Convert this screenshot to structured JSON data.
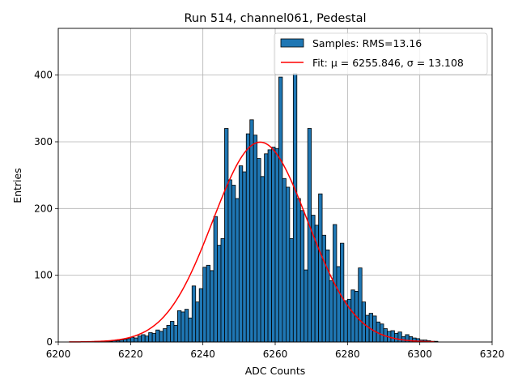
{
  "chart_data": {
    "type": "bar",
    "title": "Run 514, channel061, Pedestal",
    "xlabel": "ADC Counts",
    "ylabel": "Entries",
    "xlim": [
      6200,
      6320
    ],
    "ylim": [
      0,
      470
    ],
    "xticks": [
      6200,
      6220,
      6240,
      6260,
      6280,
      6300,
      6320
    ],
    "yticks": [
      0,
      100,
      200,
      300,
      400
    ],
    "grid": true,
    "legend_position": "top-right",
    "series": [
      {
        "name": "Samples: RMS=13.16",
        "type": "histogram",
        "color": "#1f77b4",
        "edgecolor": "#000000",
        "bin_start": 6203,
        "bin_width": 1,
        "values": [
          0,
          0,
          0,
          0,
          0,
          0,
          0,
          1,
          1,
          1,
          1,
          1,
          2,
          2,
          3,
          4,
          5,
          7,
          6,
          9,
          11,
          9,
          14,
          13,
          18,
          16,
          20,
          25,
          31,
          25,
          47,
          45,
          49,
          36,
          84,
          60,
          80,
          112,
          115,
          107,
          188,
          145,
          155,
          320,
          243,
          235,
          215,
          264,
          255,
          312,
          333,
          310,
          275,
          248,
          282,
          288,
          292,
          290,
          397,
          245,
          232,
          155,
          402,
          215,
          197,
          108,
          320,
          190,
          175,
          222,
          160,
          138,
          92,
          176,
          113,
          148,
          62,
          64,
          78,
          76,
          111,
          60,
          40,
          43,
          39,
          30,
          27,
          20,
          16,
          17,
          13,
          15,
          8,
          11,
          8,
          6,
          5,
          3,
          3,
          2,
          1,
          1
        ]
      },
      {
        "name": "Fit: μ = 6255.846, σ = 13.108",
        "type": "line",
        "color": "#ff0000",
        "mu": 6255.846,
        "sigma": 13.108,
        "amplitude": 299.5,
        "x_range": [
          6203,
          6304
        ]
      }
    ]
  }
}
